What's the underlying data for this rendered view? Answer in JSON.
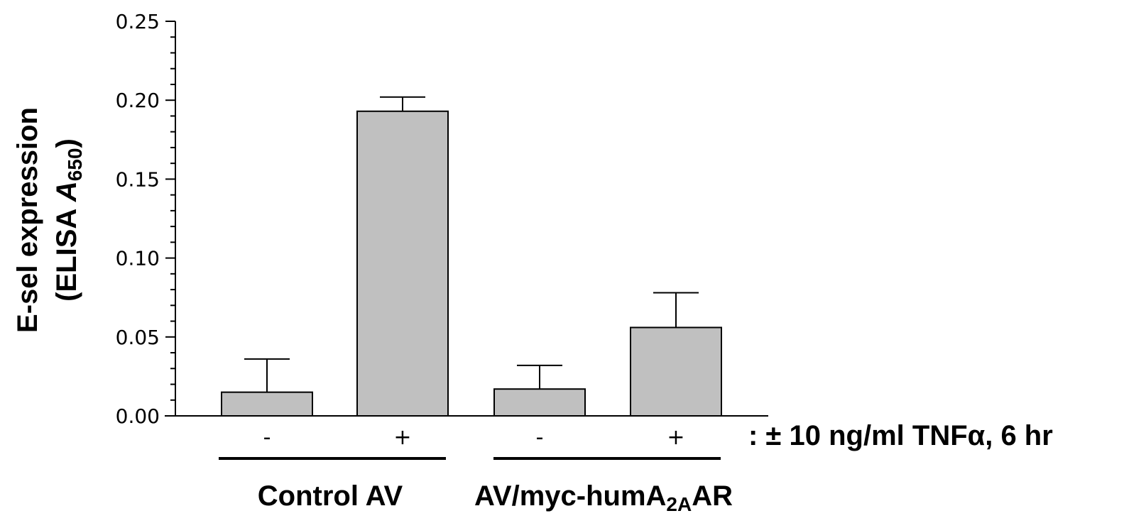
{
  "chart_data": {
    "type": "bar",
    "title": "",
    "ylabel_line1": "E-sel expression",
    "ylabel_line2_prefix": "(ELISA ",
    "ylabel_line2_var": "A",
    "ylabel_line2_sub": "650",
    "ylabel_line2_suffix": ")",
    "ylim": [
      0,
      0.25
    ],
    "yticks": [
      "0.00",
      "0.05",
      "0.10",
      "0.15",
      "0.20",
      "0.25"
    ],
    "categories": [
      "-",
      "+",
      "-",
      "+"
    ],
    "values": [
      0.015,
      0.193,
      0.017,
      0.056
    ],
    "errors": [
      0.021,
      0.009,
      0.015,
      0.022
    ],
    "groups": [
      {
        "label": "Control AV",
        "categories": [
          0,
          1
        ]
      },
      {
        "label_main": "AV/myc-humA",
        "label_sub": "2A",
        "label_end": "AR",
        "categories": [
          2,
          3
        ]
      }
    ],
    "annotation": ": ± 10 ng/ml TNFα, 6 hr",
    "bar_color": "#c0c0c0",
    "grid": false
  }
}
